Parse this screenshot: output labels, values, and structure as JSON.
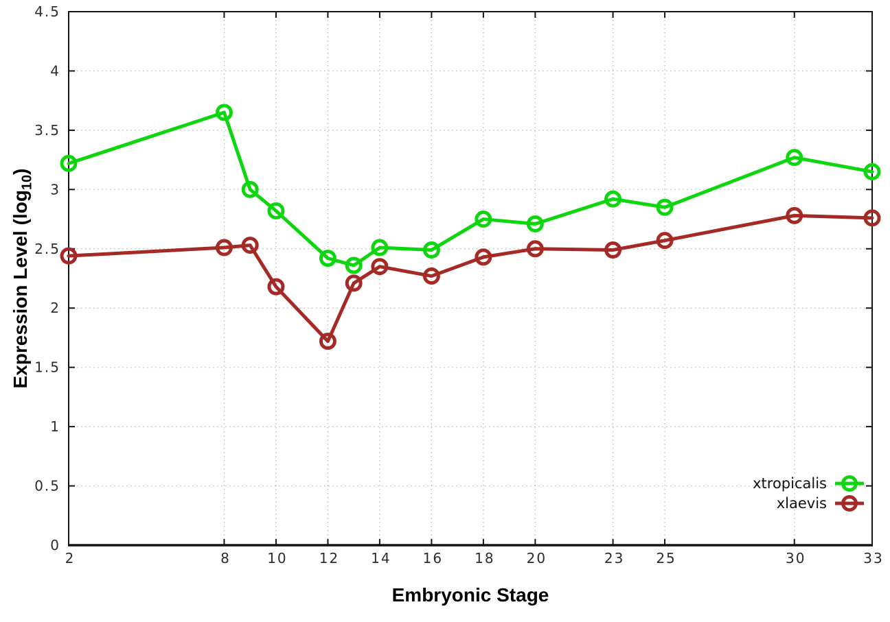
{
  "chart_data": {
    "type": "line",
    "x": [
      2,
      8,
      9,
      10,
      12,
      13,
      14,
      16,
      18,
      20,
      23,
      25,
      30,
      33
    ],
    "series": [
      {
        "name": "xtropicalis",
        "color": "#0ed60e",
        "values": [
          3.22,
          3.65,
          3.0,
          2.82,
          2.42,
          2.36,
          2.51,
          2.49,
          2.75,
          2.71,
          2.92,
          2.85,
          3.27,
          3.15
        ]
      },
      {
        "name": "xlaevis",
        "color": "#a52a25",
        "values": [
          2.44,
          2.51,
          2.53,
          2.18,
          1.72,
          2.21,
          2.35,
          2.27,
          2.43,
          2.5,
          2.49,
          2.57,
          2.78,
          2.76
        ]
      }
    ],
    "title": "",
    "xlabel": "Embryonic Stage",
    "ylabel": "Expression Level (log10)",
    "ylabel_main": "Expression Level (log",
    "ylabel_sub": "10",
    "ylabel_end": ")",
    "xlim": [
      2,
      33
    ],
    "ylim": [
      0,
      4.5
    ],
    "xticks": {
      "values": [
        2,
        8,
        10,
        12,
        14,
        16,
        18,
        20,
        23,
        25,
        30,
        33
      ],
      "labels": [
        "2",
        "8",
        "10",
        "12",
        "14",
        "16",
        "18",
        "20",
        "23",
        "25",
        "30",
        "33"
      ]
    },
    "yticks": {
      "values": [
        0,
        0.5,
        1,
        1.5,
        2,
        2.5,
        3,
        3.5,
        4,
        4.5
      ],
      "labels": [
        "0",
        "0.5",
        "1",
        "1.5",
        "2",
        "2.5",
        "3",
        "3.5",
        "4",
        "4.5"
      ]
    },
    "grid": true,
    "legend_position": "inside-bottom-right",
    "legend_entries": [
      "xtropicalis",
      "xlaevis"
    ],
    "style": {
      "grid_color": "#b5b5b5",
      "border_color": "#141414",
      "tick_label_color": "#2d2d2d",
      "background": "#ffffff"
    }
  }
}
